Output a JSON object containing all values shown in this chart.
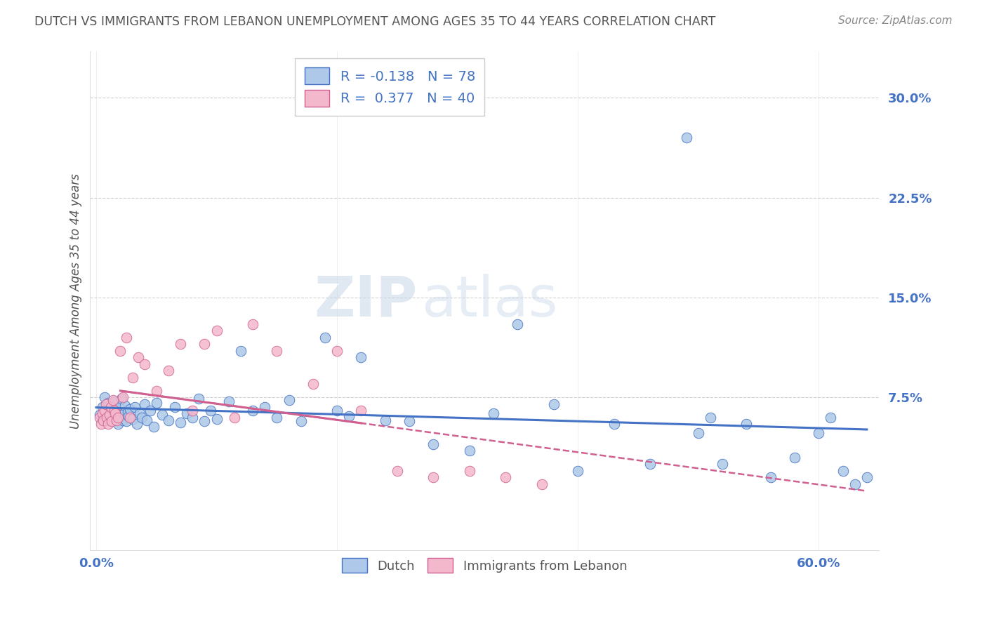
{
  "title": "DUTCH VS IMMIGRANTS FROM LEBANON UNEMPLOYMENT AMONG AGES 35 TO 44 YEARS CORRELATION CHART",
  "source": "Source: ZipAtlas.com",
  "ylabel_label": "Unemployment Among Ages 35 to 44 years",
  "ytick_labels": [
    "7.5%",
    "15.0%",
    "22.5%",
    "30.0%"
  ],
  "ytick_values": [
    0.075,
    0.15,
    0.225,
    0.3
  ],
  "xlim": [
    -0.005,
    0.65
  ],
  "ylim": [
    -0.04,
    0.335
  ],
  "dutch_color": "#adc8e8",
  "dutch_edge_color": "#4472c4",
  "leb_color": "#f4b8cc",
  "leb_edge_color": "#d06090",
  "dutch_R": -0.138,
  "dutch_N": 78,
  "leb_R": 0.377,
  "leb_N": 40,
  "legend_label_dutch": "Dutch",
  "legend_label_leb": "Immigrants from Lebanon",
  "watermark_zip": "ZIP",
  "watermark_atlas": "atlas",
  "grid_color": "#d0d0d0",
  "background_color": "#ffffff",
  "title_color": "#555555",
  "axis_label_color": "#555555",
  "tick_label_color": "#4472c4",
  "source_color": "#888888",
  "dutch_line_color": "#4472c4",
  "leb_line_color": "#d06090",
  "dutch_x": [
    0.003,
    0.005,
    0.006,
    0.007,
    0.008,
    0.009,
    0.01,
    0.011,
    0.012,
    0.013,
    0.014,
    0.015,
    0.016,
    0.017,
    0.018,
    0.019,
    0.02,
    0.021,
    0.022,
    0.023,
    0.024,
    0.025,
    0.026,
    0.027,
    0.028,
    0.03,
    0.032,
    0.034,
    0.036,
    0.038,
    0.04,
    0.042,
    0.045,
    0.048,
    0.05,
    0.055,
    0.06,
    0.065,
    0.07,
    0.075,
    0.08,
    0.085,
    0.09,
    0.095,
    0.1,
    0.11,
    0.12,
    0.13,
    0.14,
    0.15,
    0.16,
    0.17,
    0.19,
    0.2,
    0.21,
    0.22,
    0.24,
    0.26,
    0.28,
    0.31,
    0.33,
    0.35,
    0.38,
    0.4,
    0.43,
    0.46,
    0.5,
    0.52,
    0.54,
    0.56,
    0.58,
    0.6,
    0.61,
    0.62,
    0.63,
    0.64,
    0.49,
    0.51
  ],
  "dutch_y": [
    0.062,
    0.068,
    0.06,
    0.075,
    0.058,
    0.065,
    0.071,
    0.063,
    0.058,
    0.067,
    0.059,
    0.072,
    0.065,
    0.06,
    0.055,
    0.068,
    0.062,
    0.074,
    0.058,
    0.063,
    0.069,
    0.057,
    0.064,
    0.061,
    0.066,
    0.059,
    0.068,
    0.055,
    0.063,
    0.06,
    0.07,
    0.058,
    0.065,
    0.053,
    0.071,
    0.062,
    0.058,
    0.068,
    0.056,
    0.063,
    0.06,
    0.074,
    0.057,
    0.065,
    0.059,
    0.072,
    0.11,
    0.065,
    0.068,
    0.06,
    0.073,
    0.057,
    0.12,
    0.065,
    0.061,
    0.105,
    0.058,
    0.057,
    0.04,
    0.035,
    0.063,
    0.13,
    0.07,
    0.02,
    0.055,
    0.025,
    0.048,
    0.025,
    0.055,
    0.015,
    0.03,
    0.048,
    0.06,
    0.02,
    0.01,
    0.015,
    0.27,
    0.06
  ],
  "leb_x": [
    0.003,
    0.004,
    0.005,
    0.006,
    0.007,
    0.008,
    0.009,
    0.01,
    0.011,
    0.012,
    0.013,
    0.014,
    0.015,
    0.016,
    0.017,
    0.018,
    0.02,
    0.022,
    0.025,
    0.028,
    0.03,
    0.035,
    0.04,
    0.05,
    0.06,
    0.07,
    0.08,
    0.09,
    0.1,
    0.115,
    0.13,
    0.15,
    0.18,
    0.2,
    0.22,
    0.25,
    0.28,
    0.31,
    0.34,
    0.37
  ],
  "leb_y": [
    0.06,
    0.055,
    0.063,
    0.058,
    0.065,
    0.07,
    0.06,
    0.055,
    0.062,
    0.068,
    0.057,
    0.073,
    0.065,
    0.063,
    0.058,
    0.06,
    0.11,
    0.075,
    0.12,
    0.06,
    0.09,
    0.105,
    0.1,
    0.08,
    0.095,
    0.115,
    0.065,
    0.115,
    0.125,
    0.06,
    0.13,
    0.11,
    0.085,
    0.11,
    0.065,
    0.02,
    0.015,
    0.02,
    0.015,
    0.01
  ]
}
